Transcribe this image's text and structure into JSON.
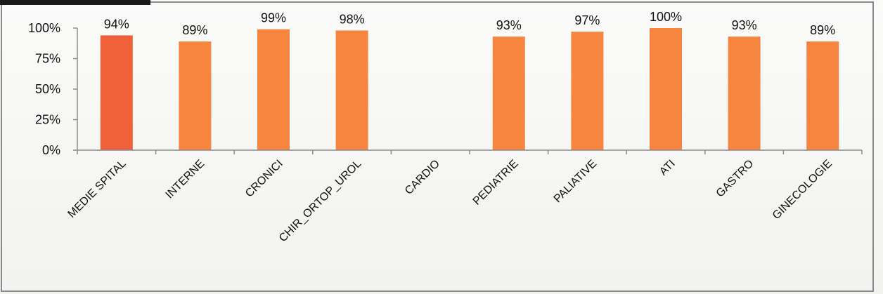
{
  "chart_data": {
    "type": "bar",
    "title": "",
    "xlabel": "",
    "ylabel": "",
    "categories": [
      "MEDIE SPITAL",
      "INTERNE",
      "CRONICI",
      "CHIR_ORTOP_UROL",
      "CARDIO",
      "PEDIATRIE",
      "PALIATIVE",
      "ATI",
      "GASTRO",
      "GINECOLOGIE"
    ],
    "values": [
      0.94,
      0.89,
      0.99,
      0.98,
      null,
      0.93,
      0.97,
      1.0,
      0.93,
      0.89
    ],
    "data_labels": [
      "94%",
      "89%",
      "99%",
      "98%",
      "",
      "93%",
      "97%",
      "100%",
      "93%",
      "89%"
    ],
    "ylim": [
      0,
      1
    ],
    "y_ticks": [
      {
        "value": 0,
        "label": "0%"
      },
      {
        "value": 0.25,
        "label": "25%"
      },
      {
        "value": 0.5,
        "label": "50%"
      },
      {
        "value": 0.75,
        "label": "75%"
      },
      {
        "value": 1.0,
        "label": "100%"
      }
    ],
    "grid": false,
    "legend": "none",
    "colors": {
      "highlight": "#f0613a",
      "bar": "#f7853f",
      "axis": "#8c8c8c",
      "frame": "#8a8a8a",
      "tab": "#1a1a1a"
    },
    "highlight_index": 0
  }
}
